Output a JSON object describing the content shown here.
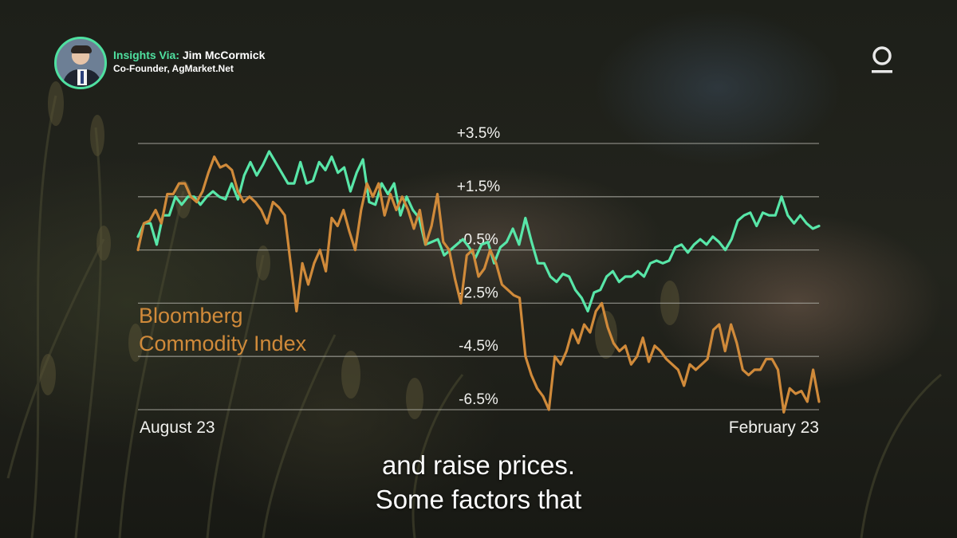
{
  "badge": {
    "prefix": "Insights Via:",
    "name": "Jim McCormick",
    "role": "Co-Founder, AgMarket.Net"
  },
  "caption": {
    "line1": "and raise prices.",
    "line2": "Some factors that"
  },
  "chart_data": {
    "type": "line",
    "title": "",
    "xlabel": "",
    "ylabel": "",
    "x_labels": [
      "August 23",
      "February 23"
    ],
    "y_ticks": [
      "+3.5%",
      "+1.5%",
      "-0.5%",
      "-2.5%",
      "-4.5%",
      "-6.5%"
    ],
    "ylim": [
      -6.5,
      3.5
    ],
    "grid": true,
    "colors": {
      "green": "#58e6a8",
      "orange": "#d08a3a",
      "grid": "#a8a8a0"
    },
    "series": [
      {
        "name": "Bloomberg Commodity Index",
        "color": "#d08a3a",
        "values": [
          -0.5,
          0.5,
          0.6,
          1.0,
          0.5,
          1.6,
          1.6,
          2.0,
          2.0,
          1.5,
          1.3,
          1.7,
          2.4,
          3.0,
          2.6,
          2.7,
          2.5,
          1.7,
          1.3,
          1.5,
          1.3,
          1.0,
          0.5,
          1.3,
          1.1,
          0.8,
          -1.0,
          -2.8,
          -1.0,
          -1.8,
          -1.0,
          -0.5,
          -1.3,
          0.7,
          0.4,
          1.0,
          0.2,
          -0.5,
          1.0,
          2.0,
          1.5,
          2.0,
          0.8,
          1.6,
          1.0,
          1.5,
          1.0,
          0.3,
          1.0,
          -0.3,
          0.4,
          1.6,
          -0.2,
          -0.5,
          -1.6,
          -2.5,
          -0.7,
          -0.5,
          -1.5,
          -1.2,
          -0.5,
          -1.0,
          -1.8,
          -2.0,
          -2.2,
          -2.3,
          -4.5,
          -5.2,
          -5.7,
          -6.0,
          -6.5,
          -4.5,
          -4.8,
          -4.3,
          -3.5,
          -4.0,
          -3.3,
          -3.6,
          -2.8,
          -2.5,
          -3.4,
          -4.0,
          -4.3,
          -4.1,
          -4.8,
          -4.5,
          -3.8,
          -4.7,
          -4.1,
          -4.3,
          -4.6,
          -4.8,
          -5.0,
          -5.6,
          -4.8,
          -5.0,
          -4.8,
          -4.6,
          -3.5,
          -3.3,
          -4.3,
          -3.3,
          -4.0,
          -5.0,
          -5.2,
          -5.0,
          -5.0,
          -4.6,
          -4.6,
          -5.0,
          -6.6,
          -5.7,
          -5.9,
          -5.8,
          -6.2,
          -5.0,
          -6.2
        ]
      },
      {
        "name": "",
        "color": "#58e6a8",
        "values": [
          0,
          0.5,
          0.5,
          -0.3,
          0.8,
          0.8,
          1.5,
          1.2,
          1.5,
          1.5,
          1.2,
          1.5,
          1.7,
          1.5,
          1.4,
          2.0,
          1.4,
          2.3,
          2.8,
          2.3,
          2.7,
          3.2,
          2.8,
          2.4,
          2.0,
          2.0,
          2.8,
          2.0,
          2.1,
          2.8,
          2.5,
          3.0,
          2.4,
          2.6,
          1.7,
          2.4,
          2.9,
          1.3,
          1.2,
          2.0,
          1.6,
          2.0,
          0.8,
          1.5,
          1.0,
          0.7,
          -0.3,
          -0.2,
          -0.1,
          -0.7,
          -0.5,
          -0.3,
          -0.1,
          -0.4,
          -0.8,
          -0.3,
          -0.2,
          -1.0,
          -0.4,
          -0.2,
          0.3,
          -0.3,
          0.7,
          -0.2,
          -1.0,
          -1.0,
          -1.5,
          -1.7,
          -1.4,
          -1.5,
          -2.0,
          -2.3,
          -2.8,
          -2.1,
          -2.0,
          -1.5,
          -1.3,
          -1.7,
          -1.5,
          -1.5,
          -1.3,
          -1.5,
          -1.0,
          -0.9,
          -1.0,
          -0.9,
          -0.4,
          -0.3,
          -0.6,
          -0.3,
          -0.1,
          -0.3,
          0.0,
          -0.2,
          -0.5,
          -0.1,
          0.6,
          0.8,
          0.9,
          0.4,
          0.9,
          0.8,
          0.8,
          1.5,
          0.8,
          0.5,
          0.8,
          0.5,
          0.3,
          0.4
        ]
      }
    ]
  }
}
